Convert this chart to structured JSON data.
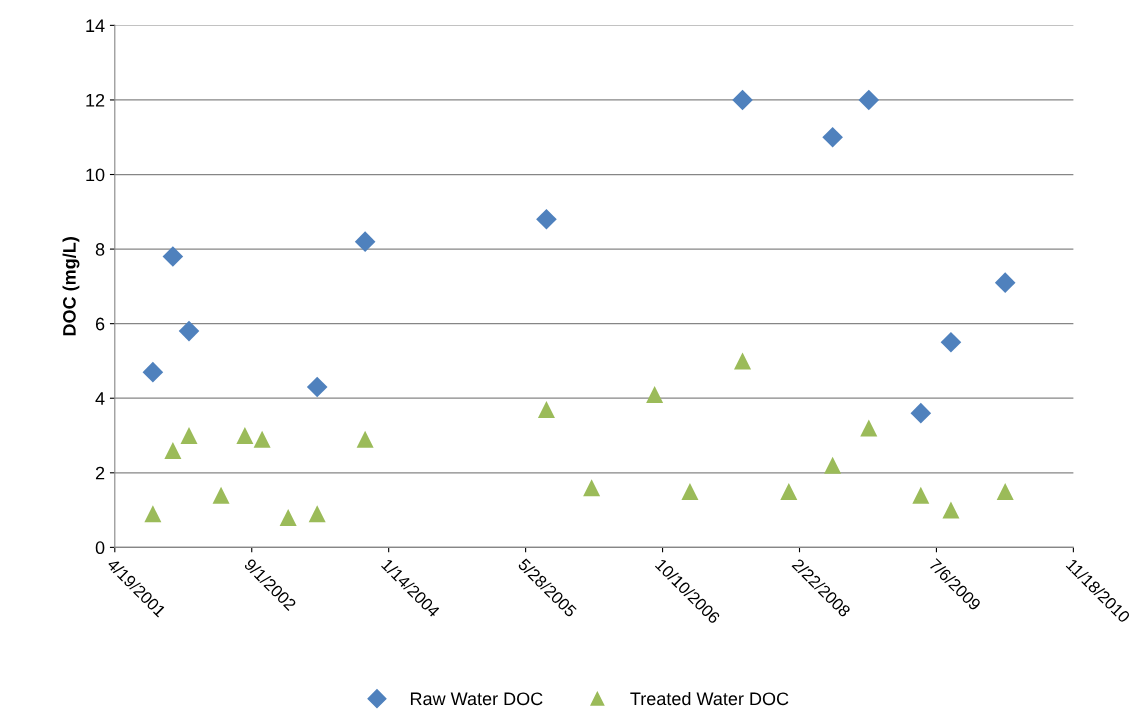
{
  "chart_data": {
    "type": "scatter",
    "ylabel": "DOC (mg/L)",
    "xlim": [
      "2001-04-19",
      "2010-11-18"
    ],
    "xticks": [
      {
        "value": "2001-04-19",
        "label": "4/19/2001"
      },
      {
        "value": "2002-09-01",
        "label": "9/1/2002"
      },
      {
        "value": "2004-01-14",
        "label": "1/14/2004"
      },
      {
        "value": "2005-05-28",
        "label": "5/28/2005"
      },
      {
        "value": "2006-10-10",
        "label": "10/10/2006"
      },
      {
        "value": "2008-02-22",
        "label": "2/22/2008"
      },
      {
        "value": "2009-07-06",
        "label": "7/6/2009"
      },
      {
        "value": "2010-11-18",
        "label": "11/18/2010"
      }
    ],
    "ylim": [
      0,
      14
    ],
    "yticks": [
      0,
      2,
      4,
      6,
      8,
      10,
      12,
      14
    ],
    "grid": "y",
    "legend": "bottom",
    "series": [
      {
        "name": "Raw Water DOC",
        "color": "#4f81bd",
        "marker": "diamond",
        "x": [
          "2001-09-05",
          "2001-11-17",
          "2002-01-15",
          "2003-04-28",
          "2003-10-20",
          "2005-08-12",
          "2007-07-29",
          "2008-06-22",
          "2008-11-01",
          "2009-05-10",
          "2009-08-28",
          "2010-03-14"
        ],
        "values": [
          4.7,
          7.8,
          5.8,
          4.3,
          8.2,
          8.8,
          12,
          11,
          12,
          3.6,
          5.5,
          7.1
        ]
      },
      {
        "name": "Treated Water DOC",
        "color": "#9bbb59",
        "marker": "triangle",
        "x": [
          "2001-09-05",
          "2001-11-17",
          "2002-01-15",
          "2002-05-12",
          "2002-08-07",
          "2002-10-09",
          "2003-01-12",
          "2003-04-28",
          "2003-10-20",
          "2005-08-12",
          "2006-01-24",
          "2006-09-11",
          "2007-01-18",
          "2007-07-29",
          "2008-01-14",
          "2008-06-22",
          "2008-11-01",
          "2009-05-10",
          "2009-08-28",
          "2010-03-14"
        ],
        "values": [
          0.9,
          2.6,
          3.0,
          1.4,
          3.0,
          2.9,
          0.8,
          0.9,
          2.9,
          3.7,
          1.6,
          4.1,
          1.5,
          5.0,
          1.5,
          2.2,
          3.2,
          1.4,
          1.0,
          1.5
        ]
      }
    ]
  }
}
